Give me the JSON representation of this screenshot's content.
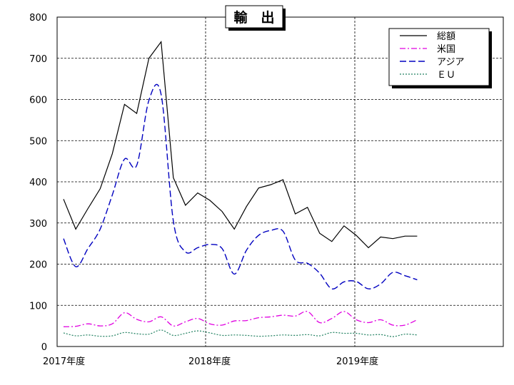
{
  "chart_data": {
    "type": "line",
    "title": "輸　出",
    "xlabel": "",
    "ylabel": "",
    "ylim": [
      0,
      800
    ],
    "y_ticks": [
      0,
      100,
      200,
      300,
      400,
      500,
      600,
      700,
      800
    ],
    "x_tick_labels": [
      "2017年度",
      "2018年度",
      "2019年度"
    ],
    "grid": true,
    "legend_position": "top-right",
    "months": 36,
    "series": [
      {
        "name": "総額",
        "color": "#000000",
        "dash": "solid",
        "values": [
          358,
          285,
          335,
          383,
          468,
          588,
          566,
          700,
          740,
          410,
          343,
          373,
          355,
          328,
          285,
          340,
          385,
          393,
          405,
          322,
          338,
          275,
          255,
          293,
          270,
          240,
          266,
          262,
          268,
          268
        ]
      },
      {
        "name": "米国",
        "color": "#e000e0",
        "dash": "dashdot",
        "values": [
          48,
          49,
          55,
          50,
          55,
          82,
          66,
          60,
          72,
          50,
          60,
          68,
          55,
          52,
          62,
          63,
          70,
          72,
          76,
          74,
          85,
          58,
          68,
          85,
          65,
          58,
          65,
          52,
          52,
          65
        ]
      },
      {
        "name": "アジア",
        "color": "#0000c0",
        "dash": "dashed",
        "values": [
          262,
          194,
          238,
          285,
          368,
          455,
          440,
          598,
          612,
          305,
          230,
          240,
          248,
          238,
          176,
          234,
          270,
          282,
          280,
          210,
          202,
          178,
          140,
          157,
          158,
          140,
          152,
          180,
          172,
          162
        ]
      },
      {
        "name": "ＥＵ",
        "color": "#208060",
        "dash": "dotted",
        "values": [
          33,
          26,
          28,
          25,
          26,
          34,
          31,
          30,
          40,
          27,
          32,
          38,
          33,
          27,
          28,
          27,
          25,
          26,
          28,
          27,
          29,
          26,
          34,
          32,
          32,
          28,
          29,
          24,
          30,
          28
        ]
      }
    ]
  }
}
